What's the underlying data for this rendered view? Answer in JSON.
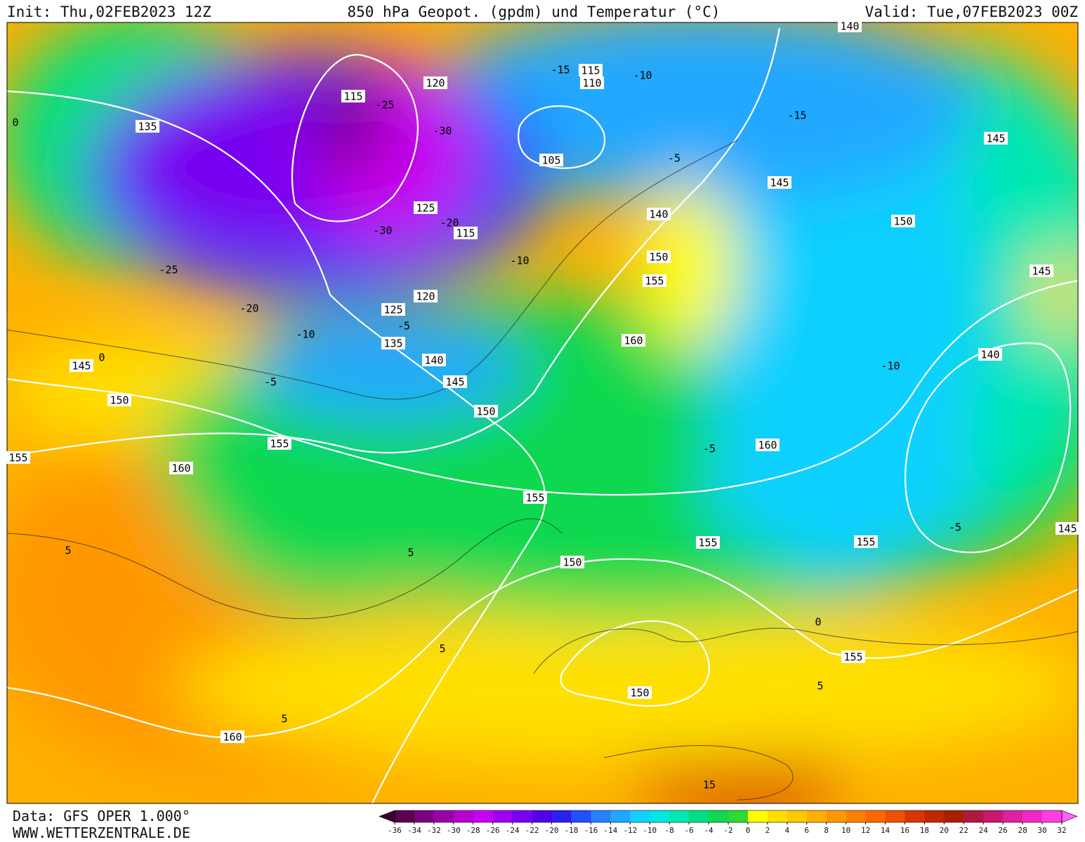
{
  "header": {
    "init": "Init: Thu,02FEB2023 12Z",
    "title": "850 hPa Geopot. (gpdm) und Temperatur (°C)",
    "valid": "Valid: Tue,07FEB2023 00Z"
  },
  "footer": {
    "source": "Data: GFS OPER 1.000°",
    "website": "WWW.WETTERZENTRALE.DE"
  },
  "colorbar": {
    "ticks": [
      -36,
      -34,
      -32,
      -30,
      -28,
      -26,
      -24,
      -22,
      -20,
      -18,
      -16,
      -14,
      -12,
      -10,
      -8,
      -6,
      -4,
      -2,
      0,
      2,
      4,
      6,
      8,
      10,
      12,
      14,
      16,
      18,
      20,
      22,
      24,
      26,
      28,
      30,
      32
    ],
    "colors": [
      "#3a0030",
      "#5a0050",
      "#7a0080",
      "#9a00a8",
      "#b400d0",
      "#c800f0",
      "#a000f0",
      "#7800f0",
      "#5000e8",
      "#2c20f0",
      "#2050ff",
      "#2880ff",
      "#20a8ff",
      "#10d0ff",
      "#00e8e0",
      "#00e8b0",
      "#00e080",
      "#10d850",
      "#30d830",
      "#ffff00",
      "#ffe000",
      "#ffc800",
      "#ffb000",
      "#ff9800",
      "#ff8000",
      "#ff6800",
      "#f05000",
      "#d83800",
      "#c02800",
      "#a82000",
      "#b01840",
      "#c81870",
      "#e020a0",
      "#f028c8",
      "#ff40e0",
      "#ff60ff"
    ]
  },
  "geopotential_labels": [
    140,
    115,
    110,
    120,
    115,
    135,
    105,
    145,
    145,
    125,
    115,
    140,
    150,
    150,
    155,
    145,
    120,
    125,
    135,
    140,
    160,
    140,
    145,
    145,
    150,
    150,
    155,
    160,
    155,
    160,
    155,
    155,
    155,
    145,
    150,
    155,
    150,
    160
  ],
  "temperature_labels": [
    -15,
    -10,
    -25,
    -30,
    -15,
    -5,
    -20,
    -30,
    -10,
    -25,
    -20,
    -10,
    -5,
    0,
    -5,
    -10,
    -5,
    0,
    5,
    5,
    5,
    5,
    5,
    15,
    0,
    -5
  ]
}
